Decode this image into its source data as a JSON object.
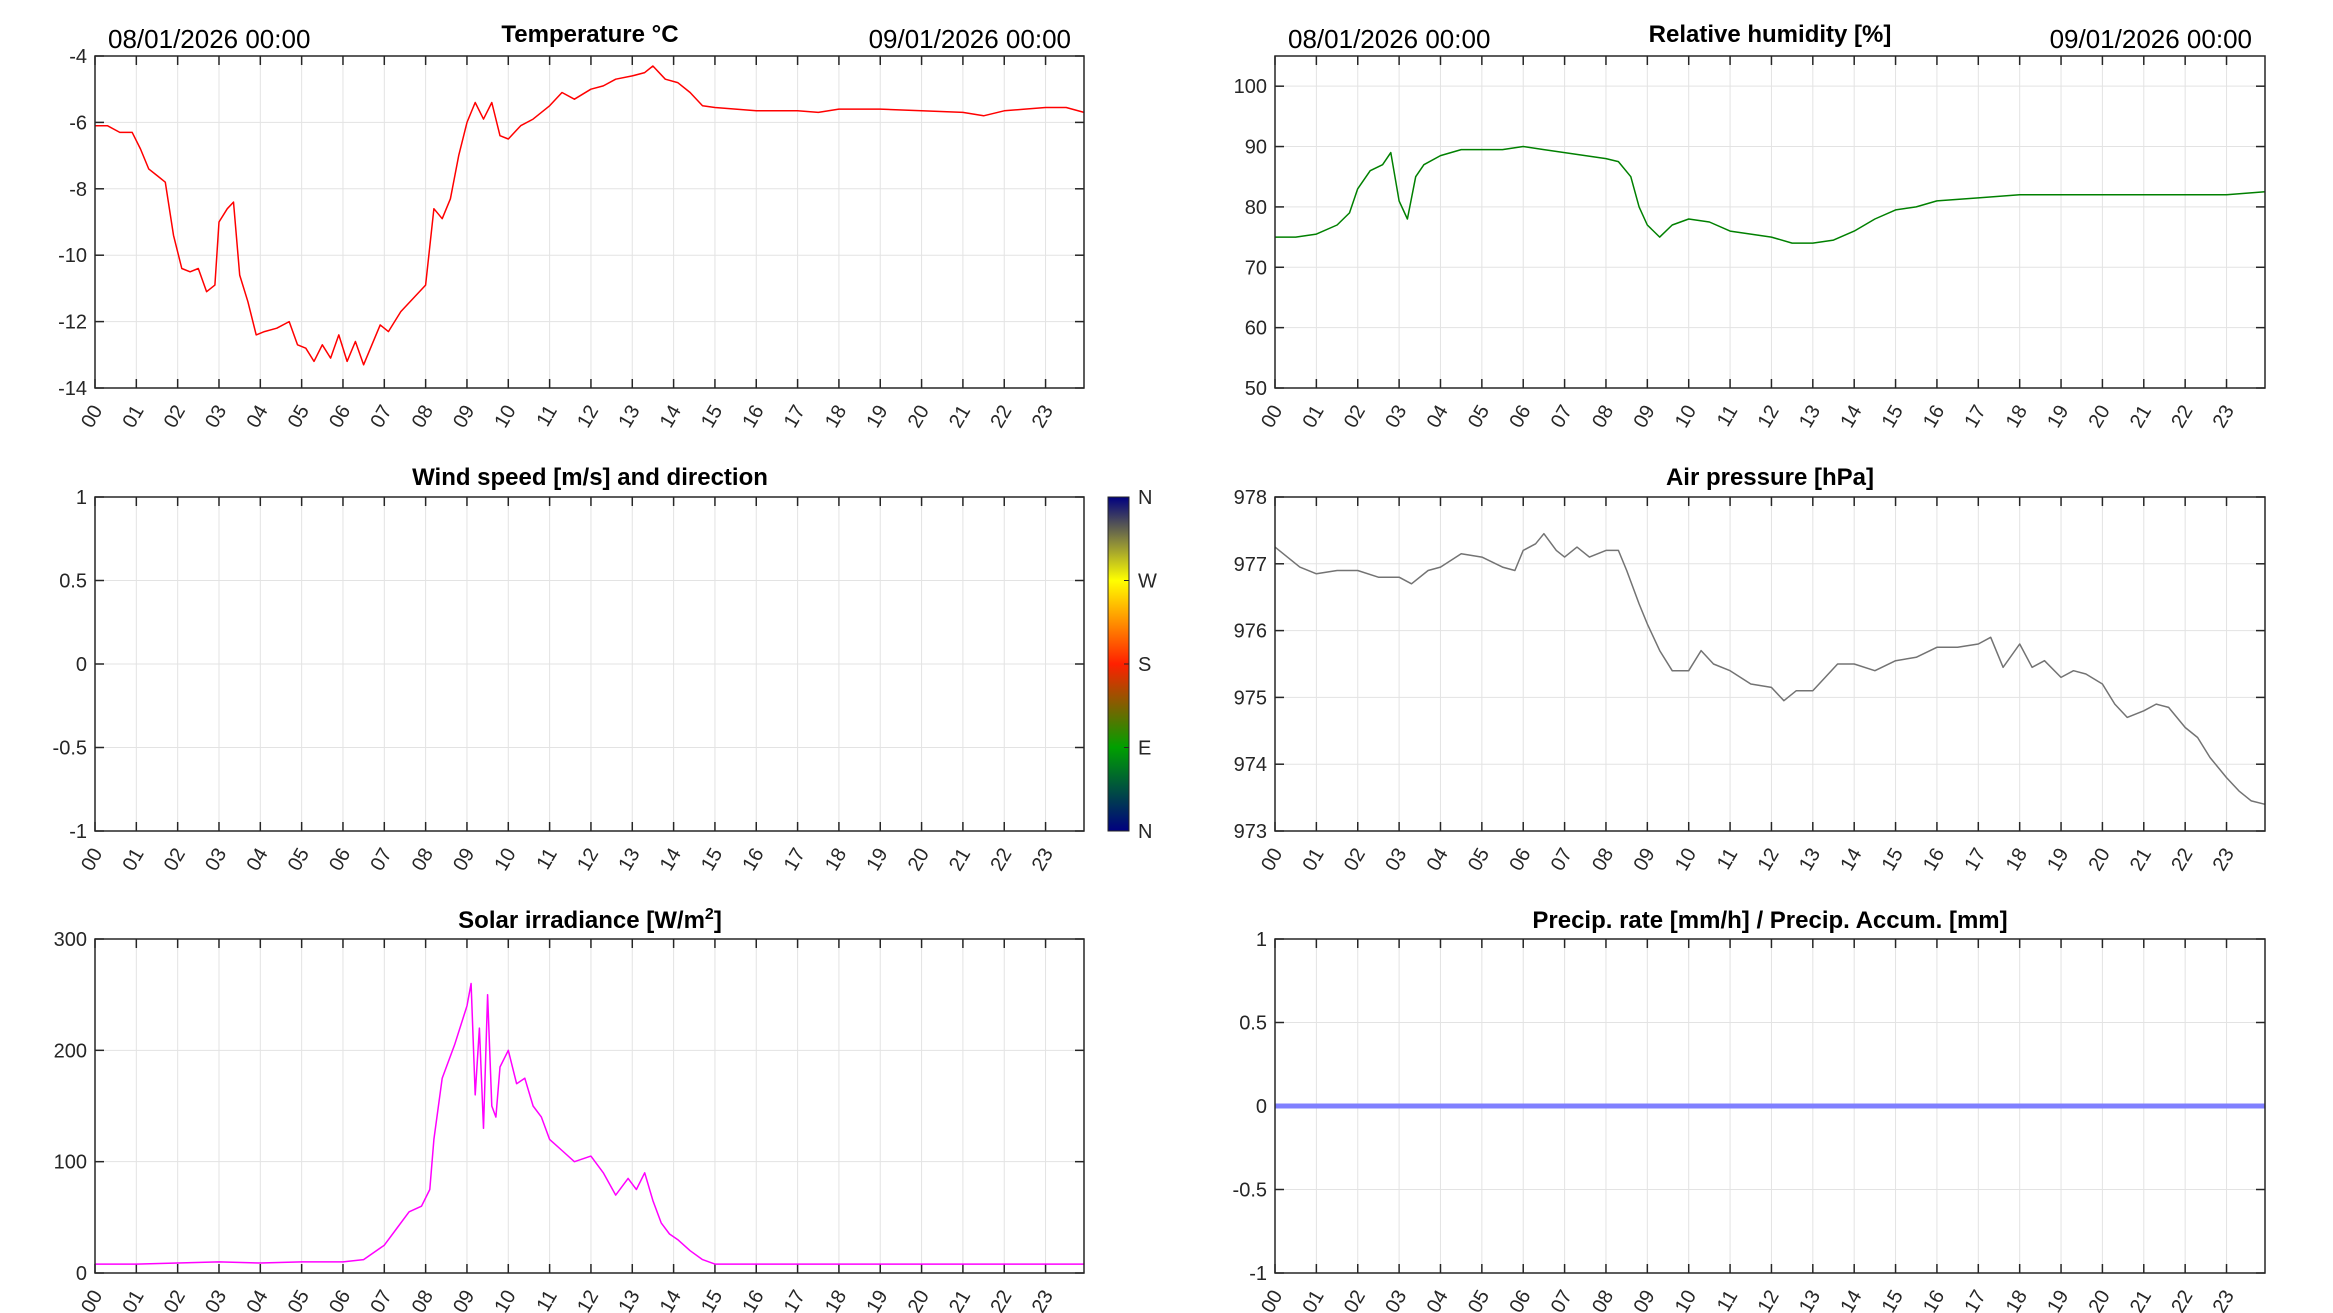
{
  "hours": [
    "00",
    "01",
    "02",
    "03",
    "04",
    "05",
    "06",
    "07",
    "08",
    "09",
    "10",
    "11",
    "12",
    "13",
    "14",
    "15",
    "16",
    "17",
    "18",
    "19",
    "20",
    "21",
    "22",
    "23"
  ],
  "chart_data": [
    {
      "id": "temperature",
      "type": "line",
      "title": "Temperature °C",
      "date_start": "08/01/2026 00:00",
      "date_end": "09/01/2026 00:00",
      "color": "#ff0000",
      "xlim": [
        0,
        23.93
      ],
      "ylim": [
        -14,
        -4
      ],
      "yticks": [
        "-4",
        "-6",
        "-8",
        "-10",
        "-12",
        "-14"
      ],
      "ytick_values": [
        -4,
        -6,
        -8,
        -10,
        -12,
        -14
      ],
      "x": [
        0,
        0.3,
        0.6,
        0.9,
        1.1,
        1.3,
        1.5,
        1.7,
        1.9,
        2.1,
        2.3,
        2.5,
        2.7,
        2.9,
        3.0,
        3.2,
        3.35,
        3.5,
        3.7,
        3.9,
        4.1,
        4.4,
        4.7,
        4.9,
        5.1,
        5.3,
        5.5,
        5.7,
        5.9,
        6.1,
        6.3,
        6.5,
        6.7,
        6.9,
        7.1,
        7.4,
        7.7,
        8.0,
        8.2,
        8.4,
        8.6,
        8.8,
        9.0,
        9.2,
        9.4,
        9.6,
        9.8,
        10.0,
        10.3,
        10.6,
        11.0,
        11.3,
        11.6,
        12.0,
        12.3,
        12.6,
        13.0,
        13.3,
        13.5,
        13.8,
        14.1,
        14.4,
        14.7,
        15.0,
        16.0,
        17.0,
        17.5,
        18.0,
        19.0,
        20.0,
        21.0,
        21.5,
        22.0,
        22.5,
        23.0,
        23.5,
        23.93
      ],
      "y": [
        -6.1,
        -6.1,
        -6.3,
        -6.3,
        -6.8,
        -7.4,
        -7.6,
        -7.8,
        -9.4,
        -10.4,
        -10.5,
        -10.4,
        -11.1,
        -10.9,
        -9.0,
        -8.6,
        -8.4,
        -10.6,
        -11.4,
        -12.4,
        -12.3,
        -12.2,
        -12.0,
        -12.7,
        -12.8,
        -13.2,
        -12.7,
        -13.1,
        -12.4,
        -13.2,
        -12.6,
        -13.3,
        -12.7,
        -12.1,
        -12.3,
        -11.7,
        -11.3,
        -10.9,
        -8.6,
        -8.9,
        -8.3,
        -7.0,
        -6.0,
        -5.4,
        -5.9,
        -5.4,
        -6.4,
        -6.5,
        -6.1,
        -5.9,
        -5.5,
        -5.1,
        -5.3,
        -5.0,
        -4.9,
        -4.7,
        -4.6,
        -4.5,
        -4.3,
        -4.7,
        -4.8,
        -5.1,
        -5.5,
        -5.55,
        -5.65,
        -5.65,
        -5.7,
        -5.6,
        -5.6,
        -5.65,
        -5.7,
        -5.8,
        -5.65,
        -5.6,
        -5.55,
        -5.55,
        -5.7
      ]
    },
    {
      "id": "humidity",
      "type": "line",
      "title": "Relative humidity [%]",
      "date_start": "08/01/2026 00:00",
      "date_end": "09/01/2026 00:00",
      "color": "#008000",
      "xlim": [
        0,
        23.93
      ],
      "ylim": [
        50,
        105
      ],
      "yticks": [
        "100",
        "90",
        "80",
        "70",
        "60",
        "50"
      ],
      "ytick_values": [
        100,
        90,
        80,
        70,
        60,
        50
      ],
      "x": [
        0,
        0.5,
        1.0,
        1.5,
        1.8,
        2.0,
        2.3,
        2.6,
        2.8,
        3.0,
        3.2,
        3.4,
        3.6,
        4.0,
        4.5,
        5.0,
        5.5,
        6.0,
        6.5,
        7.0,
        7.5,
        8.0,
        8.3,
        8.6,
        8.8,
        9.0,
        9.3,
        9.6,
        10.0,
        10.5,
        11.0,
        11.5,
        12.0,
        12.5,
        13.0,
        13.5,
        14.0,
        14.5,
        15.0,
        15.5,
        16.0,
        17.0,
        18.0,
        19.0,
        20.0,
        21.0,
        22.0,
        23.0,
        23.93
      ],
      "y": [
        75,
        75,
        75.5,
        77,
        79,
        83,
        86,
        87,
        89,
        81,
        78,
        85,
        87,
        88.5,
        89.5,
        89.5,
        89.5,
        90,
        89.5,
        89,
        88.5,
        88,
        87.5,
        85,
        80,
        77,
        75,
        77,
        78,
        77.5,
        76,
        75.5,
        75,
        74,
        74,
        74.5,
        76,
        78,
        79.5,
        80,
        81,
        81.5,
        82,
        82,
        82,
        82,
        82,
        82,
        82.5
      ]
    },
    {
      "id": "wind",
      "type": "line",
      "title": "Wind speed [m/s] and direction",
      "xlim": [
        0,
        23.93
      ],
      "ylim": [
        -1,
        1
      ],
      "yticks": [
        "1",
        "0.5",
        "0",
        "-0.5",
        "-1"
      ],
      "ytick_values": [
        1,
        0.5,
        0,
        -0.5,
        -1
      ],
      "x": [],
      "y": [],
      "colorbar": {
        "labels": [
          "N",
          "W",
          "S",
          "E",
          "N"
        ],
        "colors": [
          "#000080",
          "#00a000",
          "#ff2000",
          "#ffff00",
          "#000080"
        ]
      }
    },
    {
      "id": "pressure",
      "type": "line",
      "title": "Air pressure [hPa]",
      "color": "#737373",
      "xlim": [
        0,
        23.93
      ],
      "ylim": [
        973,
        978
      ],
      "yticks": [
        "978",
        "977",
        "976",
        "975",
        "974",
        "973"
      ],
      "ytick_values": [
        978,
        977,
        976,
        975,
        974,
        973
      ],
      "x": [
        0,
        0.3,
        0.6,
        1.0,
        1.5,
        2.0,
        2.5,
        3.0,
        3.3,
        3.7,
        4.0,
        4.5,
        5.0,
        5.5,
        5.8,
        6.0,
        6.3,
        6.5,
        6.8,
        7.0,
        7.3,
        7.6,
        8.0,
        8.3,
        8.5,
        8.8,
        9.0,
        9.3,
        9.6,
        10.0,
        10.3,
        10.6,
        11.0,
        11.5,
        12.0,
        12.3,
        12.6,
        13.0,
        13.3,
        13.6,
        14.0,
        14.5,
        15.0,
        15.5,
        16.0,
        16.5,
        17.0,
        17.3,
        17.6,
        18.0,
        18.3,
        18.6,
        19.0,
        19.3,
        19.6,
        20.0,
        20.3,
        20.6,
        21.0,
        21.3,
        21.6,
        22.0,
        22.3,
        22.6,
        23.0,
        23.3,
        23.6,
        23.93
      ],
      "y": [
        977.25,
        977.1,
        976.95,
        976.85,
        976.9,
        976.9,
        976.8,
        976.8,
        976.7,
        976.9,
        976.95,
        977.15,
        977.1,
        976.95,
        976.9,
        977.2,
        977.3,
        977.45,
        977.2,
        977.1,
        977.25,
        977.1,
        977.2,
        977.2,
        976.9,
        976.4,
        976.1,
        975.7,
        975.4,
        975.4,
        975.7,
        975.5,
        975.4,
        975.2,
        975.15,
        974.95,
        975.1,
        975.1,
        975.3,
        975.5,
        975.5,
        975.4,
        975.55,
        975.6,
        975.75,
        975.75,
        975.8,
        975.9,
        975.45,
        975.8,
        975.45,
        975.55,
        975.3,
        975.4,
        975.35,
        975.2,
        974.9,
        974.7,
        974.8,
        974.9,
        974.85,
        974.55,
        974.4,
        974.1,
        973.8,
        973.6,
        973.45,
        973.4
      ]
    },
    {
      "id": "solar",
      "type": "line",
      "title": "Solar irradiance [W/m",
      "title_sup": "2",
      "title_end": "]",
      "color": "#ff00ff",
      "xlim": [
        0,
        23.93
      ],
      "ylim": [
        0,
        300
      ],
      "yticks": [
        "300",
        "200",
        "100",
        "0"
      ],
      "ytick_values": [
        300,
        200,
        100,
        0
      ],
      "x": [
        0,
        1,
        2,
        3,
        4,
        5,
        6,
        6.5,
        7.0,
        7.3,
        7.6,
        7.9,
        8.1,
        8.2,
        8.4,
        8.7,
        9.0,
        9.1,
        9.2,
        9.3,
        9.4,
        9.5,
        9.6,
        9.7,
        9.8,
        10.0,
        10.2,
        10.4,
        10.6,
        10.8,
        11.0,
        11.3,
        11.6,
        12.0,
        12.3,
        12.6,
        12.9,
        13.1,
        13.3,
        13.5,
        13.7,
        13.9,
        14.1,
        14.4,
        14.7,
        15.0,
        16,
        17,
        18,
        19,
        20,
        21,
        22,
        23,
        23.93
      ],
      "y": [
        8,
        8,
        9,
        10,
        9,
        10,
        10,
        12,
        25,
        40,
        55,
        60,
        75,
        120,
        175,
        205,
        240,
        260,
        160,
        220,
        130,
        250,
        150,
        140,
        185,
        200,
        170,
        175,
        150,
        140,
        120,
        110,
        100,
        105,
        90,
        70,
        85,
        75,
        90,
        65,
        45,
        35,
        30,
        20,
        12,
        8,
        8,
        8,
        8,
        8,
        8,
        8,
        8,
        8,
        8
      ]
    },
    {
      "id": "precip",
      "type": "line",
      "title": "Precip. rate [mm/h] / Precip. Accum. [mm]",
      "color": "#8080ff",
      "xlim": [
        0,
        23.93
      ],
      "ylim": [
        -1,
        1
      ],
      "yticks": [
        "1",
        "0.5",
        "0",
        "-0.5",
        "-1"
      ],
      "ytick_values": [
        1,
        0.5,
        0,
        -0.5,
        -1
      ],
      "x": [
        0,
        23.93
      ],
      "y": [
        0,
        0
      ]
    }
  ]
}
